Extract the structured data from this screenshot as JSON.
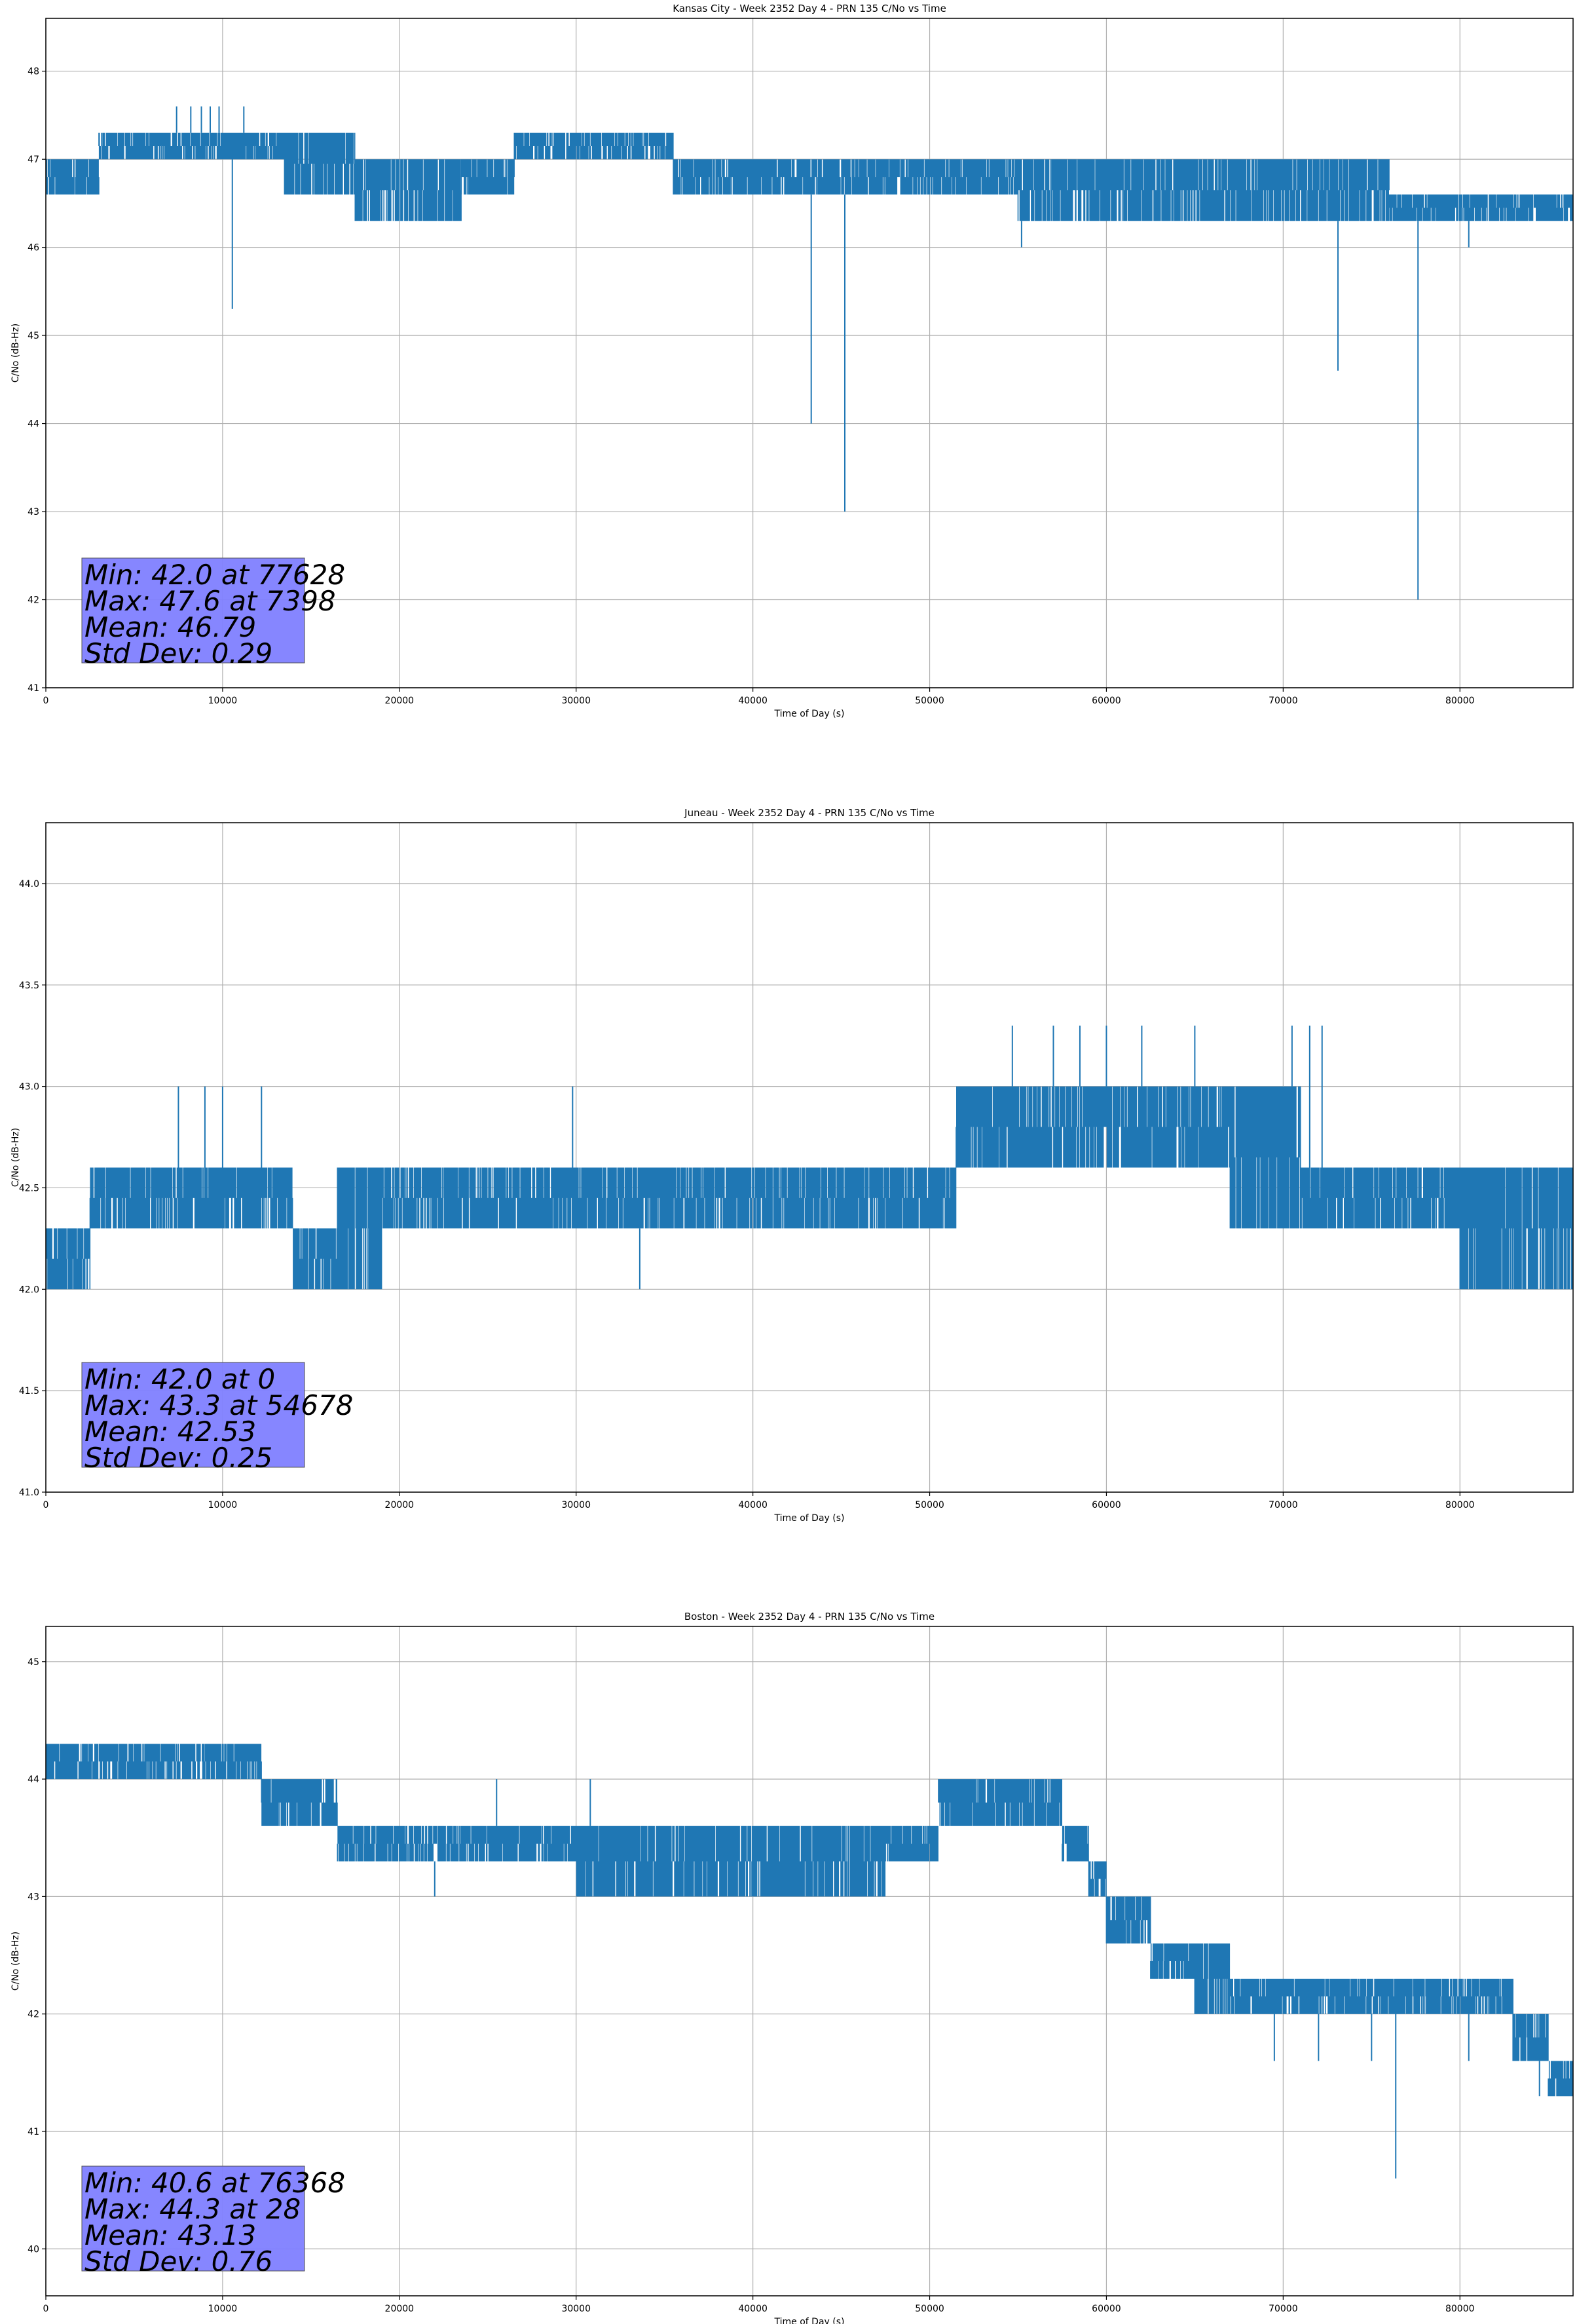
{
  "chart_data": [
    {
      "type": "line",
      "title": "Kansas City - Week 2352 Day 4 - PRN 135 C/No vs Time",
      "xlabel": "Time of Day (s)",
      "ylabel": "C/No (dB-Hz)",
      "xlim": [
        0,
        86400
      ],
      "ylim": [
        41,
        48.6
      ],
      "xticks": [
        0,
        10000,
        20000,
        30000,
        40000,
        50000,
        60000,
        70000,
        80000
      ],
      "yticks": [
        41,
        42,
        43,
        44,
        45,
        46,
        47,
        48
      ],
      "ytick_decimals": 0,
      "grid": true,
      "line_color": "#1f77b4",
      "band_levels": [
        {
          "x": [
            0,
            3000
          ],
          "y": [
            46.6,
            47.0
          ]
        },
        {
          "x": [
            3000,
            13500
          ],
          "y": [
            47.0,
            47.3
          ]
        },
        {
          "x": [
            13500,
            17500
          ],
          "y": [
            46.6,
            47.3
          ]
        },
        {
          "x": [
            17500,
            23500
          ],
          "y": [
            46.3,
            47.0
          ]
        },
        {
          "x": [
            23500,
            26500
          ],
          "y": [
            46.6,
            47.0
          ]
        },
        {
          "x": [
            26500,
            35500
          ],
          "y": [
            47.0,
            47.3
          ]
        },
        {
          "x": [
            35500,
            48000
          ],
          "y": [
            46.6,
            47.0
          ]
        },
        {
          "x": [
            48000,
            55000
          ],
          "y": [
            46.6,
            47.0
          ]
        },
        {
          "x": [
            55000,
            60000
          ],
          "y": [
            46.3,
            47.0
          ]
        },
        {
          "x": [
            60000,
            76000
          ],
          "y": [
            46.3,
            47.0
          ]
        },
        {
          "x": [
            76000,
            86400
          ],
          "y": [
            46.3,
            46.6
          ]
        }
      ],
      "spikes": [
        {
          "x": 10550,
          "y": 45.3
        },
        {
          "x": 43300,
          "y": 44.0
        },
        {
          "x": 45200,
          "y": 43.0
        },
        {
          "x": 73100,
          "y": 44.6
        },
        {
          "x": 77628,
          "y": 42.0
        },
        {
          "x": 7398,
          "y": 47.6
        },
        {
          "x": 8200,
          "y": 47.6
        },
        {
          "x": 8800,
          "y": 47.6
        },
        {
          "x": 9300,
          "y": 47.6
        },
        {
          "x": 9800,
          "y": 47.6
        },
        {
          "x": 11200,
          "y": 47.6
        },
        {
          "x": 55200,
          "y": 46.0
        },
        {
          "x": 80500,
          "y": 46.0
        }
      ],
      "stats": [
        "Min: 42.0 at 77628",
        "Max: 47.6 at 7398",
        "Mean: 46.79",
        "Std Dev: 0.29"
      ],
      "stats_box_color": "#8080ff"
    },
    {
      "type": "line",
      "title": "Juneau - Week 2352 Day 4 - PRN 135 C/No vs Time",
      "xlabel": "Time of Day (s)",
      "ylabel": "C/No (dB-Hz)",
      "xlim": [
        0,
        86400
      ],
      "ylim": [
        41,
        44.3
      ],
      "xticks": [
        0,
        10000,
        20000,
        30000,
        40000,
        50000,
        60000,
        70000,
        80000
      ],
      "yticks": [
        41.0,
        41.5,
        42.0,
        42.5,
        43.0,
        43.5,
        44.0
      ],
      "ytick_decimals": 1,
      "grid": true,
      "line_color": "#1f77b4",
      "band_levels": [
        {
          "x": [
            0,
            2500
          ],
          "y": [
            42.0,
            42.3
          ]
        },
        {
          "x": [
            2500,
            14000
          ],
          "y": [
            42.3,
            42.6
          ]
        },
        {
          "x": [
            14000,
            16500
          ],
          "y": [
            42.0,
            42.3
          ]
        },
        {
          "x": [
            16500,
            19000
          ],
          "y": [
            42.0,
            42.6
          ]
        },
        {
          "x": [
            19000,
            51500
          ],
          "y": [
            42.3,
            42.6
          ]
        },
        {
          "x": [
            51500,
            58000
          ],
          "y": [
            42.6,
            43.0
          ]
        },
        {
          "x": [
            58000,
            67000
          ],
          "y": [
            42.6,
            43.0
          ]
        },
        {
          "x": [
            67000,
            71000
          ],
          "y": [
            42.3,
            43.0
          ]
        },
        {
          "x": [
            71000,
            80000
          ],
          "y": [
            42.3,
            42.6
          ]
        },
        {
          "x": [
            80000,
            86400
          ],
          "y": [
            42.0,
            42.6
          ]
        }
      ],
      "spikes": [
        {
          "x": 7500,
          "y": 43.0
        },
        {
          "x": 9000,
          "y": 43.0
        },
        {
          "x": 10000,
          "y": 43.0
        },
        {
          "x": 12200,
          "y": 43.0
        },
        {
          "x": 29800,
          "y": 43.0
        },
        {
          "x": 33600,
          "y": 42.0
        },
        {
          "x": 54678,
          "y": 43.3
        },
        {
          "x": 57000,
          "y": 43.3
        },
        {
          "x": 58500,
          "y": 43.3
        },
        {
          "x": 60000,
          "y": 43.3
        },
        {
          "x": 62000,
          "y": 43.3
        },
        {
          "x": 65000,
          "y": 43.3
        },
        {
          "x": 70500,
          "y": 43.3
        },
        {
          "x": 71500,
          "y": 43.3
        },
        {
          "x": 72200,
          "y": 43.3
        }
      ],
      "stats": [
        "Min: 42.0 at 0",
        "Max: 43.3 at 54678",
        "Mean: 42.53",
        "Std Dev: 0.25"
      ],
      "stats_box_color": "#8080ff"
    },
    {
      "type": "line",
      "title": "Boston - Week 2352 Day 4 - PRN 135 C/No vs Time",
      "xlabel": "Time of Day (s)",
      "ylabel": "C/No (dB-Hz)",
      "xlim": [
        0,
        86400
      ],
      "ylim": [
        39.6,
        45.3
      ],
      "xticks": [
        0,
        10000,
        20000,
        30000,
        40000,
        50000,
        60000,
        70000,
        80000
      ],
      "yticks": [
        40,
        41,
        42,
        43,
        44,
        45
      ],
      "ytick_decimals": 0,
      "grid": true,
      "line_color": "#1f77b4",
      "band_levels": [
        {
          "x": [
            0,
            9000
          ],
          "y": [
            44.0,
            44.3
          ]
        },
        {
          "x": [
            9000,
            12200
          ],
          "y": [
            44.0,
            44.3
          ]
        },
        {
          "x": [
            12200,
            16500
          ],
          "y": [
            43.6,
            44.0
          ]
        },
        {
          "x": [
            16500,
            30000
          ],
          "y": [
            43.3,
            43.6
          ]
        },
        {
          "x": [
            30000,
            47500
          ],
          "y": [
            43.0,
            43.6
          ]
        },
        {
          "x": [
            47500,
            50500
          ],
          "y": [
            43.3,
            43.6
          ]
        },
        {
          "x": [
            50500,
            57500
          ],
          "y": [
            43.6,
            44.0
          ]
        },
        {
          "x": [
            57500,
            59000
          ],
          "y": [
            43.3,
            43.6
          ]
        },
        {
          "x": [
            59000,
            60000
          ],
          "y": [
            43.0,
            43.3
          ]
        },
        {
          "x": [
            60000,
            62500
          ],
          "y": [
            42.6,
            43.0
          ]
        },
        {
          "x": [
            62500,
            65000
          ],
          "y": [
            42.3,
            42.6
          ]
        },
        {
          "x": [
            65000,
            67000
          ],
          "y": [
            42.0,
            42.6
          ]
        },
        {
          "x": [
            67000,
            76500
          ],
          "y": [
            42.0,
            42.3
          ]
        },
        {
          "x": [
            76500,
            83000
          ],
          "y": [
            42.0,
            42.3
          ]
        },
        {
          "x": [
            83000,
            85000
          ],
          "y": [
            41.6,
            42.0
          ]
        },
        {
          "x": [
            85000,
            86400
          ],
          "y": [
            41.3,
            41.6
          ]
        }
      ],
      "spikes": [
        {
          "x": 28,
          "y": 44.3
        },
        {
          "x": 76368,
          "y": 40.6
        },
        {
          "x": 22000,
          "y": 43.0
        },
        {
          "x": 25500,
          "y": 44.0
        },
        {
          "x": 30800,
          "y": 44.0
        },
        {
          "x": 69500,
          "y": 41.6
        },
        {
          "x": 72000,
          "y": 41.6
        },
        {
          "x": 75000,
          "y": 41.6
        },
        {
          "x": 80500,
          "y": 41.6
        },
        {
          "x": 84500,
          "y": 41.3
        }
      ],
      "stats": [
        "Min: 40.6 at 76368",
        "Max: 44.3 at 28",
        "Mean: 43.13",
        "Std Dev: 0.76"
      ],
      "stats_box_color": "#8080ff"
    }
  ]
}
